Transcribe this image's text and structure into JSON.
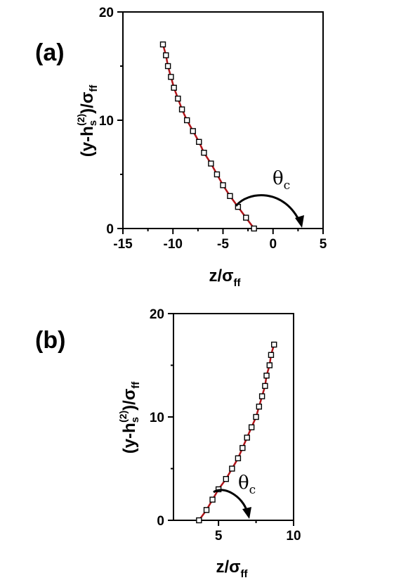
{
  "chart_data": [
    {
      "type": "scatter",
      "panel_label": "(a)",
      "xlabel": {
        "main": "z/σ",
        "sub": "ff"
      },
      "ylabel": {
        "main1": "(y-h",
        "sub": "s",
        "sup": "(2)",
        "main2": ")/σ",
        "sub2": "ff"
      },
      "xlim": [
        -15,
        5
      ],
      "ylim": [
        0,
        20
      ],
      "x_ticks": [
        -15,
        -10,
        -5,
        0,
        5
      ],
      "y_ticks": [
        0,
        10,
        20
      ],
      "x_tick_labels": [
        "-15",
        "-10",
        "-5",
        "0",
        "5"
      ],
      "y_tick_labels": [
        "0",
        "10",
        "20"
      ],
      "series": [
        {
          "style": "open-square-markers",
          "color": "#000000",
          "points": [
            [
              -1.9,
              0
            ],
            [
              -2.7,
              1
            ],
            [
              -3.5,
              2
            ],
            [
              -4.3,
              3
            ],
            [
              -5.0,
              4
            ],
            [
              -5.6,
              5
            ],
            [
              -6.2,
              6
            ],
            [
              -6.9,
              7
            ],
            [
              -7.4,
              8
            ],
            [
              -8.0,
              9
            ],
            [
              -8.6,
              10
            ],
            [
              -9.1,
              11
            ],
            [
              -9.5,
              12
            ],
            [
              -9.9,
              13
            ],
            [
              -10.2,
              14
            ],
            [
              -10.5,
              15
            ],
            [
              -10.7,
              16
            ],
            [
              -11.0,
              17
            ]
          ]
        },
        {
          "style": "fit-line",
          "color": "#b0151a",
          "points": [
            [
              -1.9,
              0
            ],
            [
              -2.7,
              1
            ],
            [
              -3.5,
              2
            ],
            [
              -4.3,
              3
            ],
            [
              -5.0,
              4
            ],
            [
              -5.6,
              5
            ],
            [
              -6.2,
              6
            ],
            [
              -6.9,
              7
            ],
            [
              -7.4,
              8
            ],
            [
              -8.0,
              9
            ],
            [
              -8.6,
              10
            ],
            [
              -9.1,
              11
            ],
            [
              -9.5,
              12
            ],
            [
              -9.9,
              13
            ],
            [
              -10.2,
              14
            ],
            [
              -10.5,
              15
            ],
            [
              -10.7,
              16
            ],
            [
              -11.0,
              17
            ]
          ]
        }
      ],
      "annotation": {
        "text": "θ",
        "sub": "c"
      }
    },
    {
      "type": "scatter",
      "panel_label": "(b)",
      "xlabel": {
        "main": "z/σ",
        "sub": "ff"
      },
      "ylabel": {
        "main1": "(y-h",
        "sub": "s",
        "sup": "(2)",
        "main2": ")/σ",
        "sub2": "ff"
      },
      "xlim": [
        2,
        10
      ],
      "ylim": [
        0,
        20
      ],
      "x_ticks": [
        5,
        10
      ],
      "y_ticks": [
        0,
        10,
        20
      ],
      "x_tick_labels": [
        "5",
        "10"
      ],
      "y_tick_labels": [
        "0",
        "10",
        "20"
      ],
      "series": [
        {
          "style": "open-square-markers",
          "color": "#000000",
          "points": [
            [
              3.7,
              0
            ],
            [
              4.2,
              1
            ],
            [
              4.6,
              2
            ],
            [
              5.0,
              3
            ],
            [
              5.5,
              4
            ],
            [
              5.9,
              5
            ],
            [
              6.3,
              6
            ],
            [
              6.6,
              7
            ],
            [
              6.9,
              8
            ],
            [
              7.2,
              9
            ],
            [
              7.5,
              10
            ],
            [
              7.7,
              11
            ],
            [
              7.9,
              12
            ],
            [
              8.1,
              13
            ],
            [
              8.2,
              14
            ],
            [
              8.4,
              15
            ],
            [
              8.5,
              16
            ],
            [
              8.7,
              17
            ]
          ]
        },
        {
          "style": "fit-line",
          "color": "#b0151a",
          "points": [
            [
              3.7,
              0
            ],
            [
              4.2,
              1
            ],
            [
              4.6,
              2
            ],
            [
              5.0,
              3
            ],
            [
              5.5,
              4
            ],
            [
              5.9,
              5
            ],
            [
              6.3,
              6
            ],
            [
              6.6,
              7
            ],
            [
              6.9,
              8
            ],
            [
              7.2,
              9
            ],
            [
              7.5,
              10
            ],
            [
              7.7,
              11
            ],
            [
              7.9,
              12
            ],
            [
              8.1,
              13
            ],
            [
              8.2,
              14
            ],
            [
              8.4,
              15
            ],
            [
              8.5,
              16
            ],
            [
              8.7,
              17
            ]
          ]
        }
      ],
      "annotation": {
        "text": "θ",
        "sub": "c"
      }
    }
  ]
}
